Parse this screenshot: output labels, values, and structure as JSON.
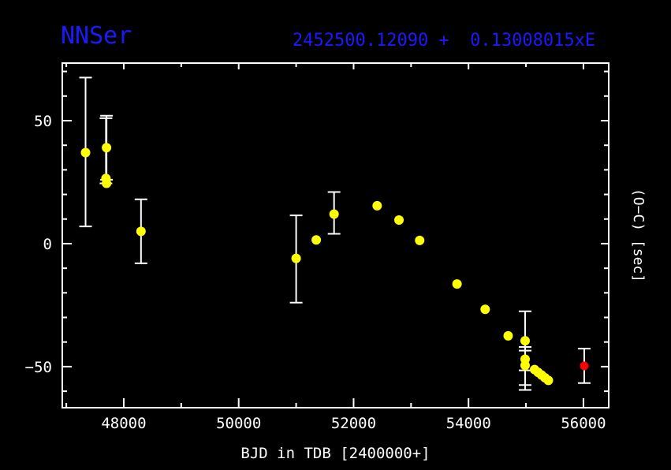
{
  "header": {
    "title": "NNSer",
    "ephemeris": "2452500.12090 +  0.13008015xE"
  },
  "colors": {
    "background": "#000000",
    "accent_blue": "#1a1aff",
    "axis_white": "#ffffff",
    "point_yellow": "#ffff00",
    "point_red": "#ff0000"
  },
  "chart_data": {
    "type": "scatter",
    "title": "NNSer",
    "subtitle_ephemeris": "2452500.12090 +  0.13008015xE",
    "xlabel": "BJD in TDB [2400000+]",
    "ylabel_right": "(O−C) [sec]",
    "xlim": [
      46930,
      56440
    ],
    "ylim": [
      -66.7,
      73.4
    ],
    "grid": false,
    "legend": "none",
    "x_major_ticks": [
      48000,
      50000,
      52000,
      54000,
      56000
    ],
    "x_major_labels": [
      "48000",
      "50000",
      "52000",
      "54000",
      "56000"
    ],
    "x_minor_ticks": [
      47000,
      49000,
      51000,
      53000,
      55000
    ],
    "y_major_ticks": [
      50,
      0,
      -50
    ],
    "y_major_labels": [
      "50",
      "0",
      "−50"
    ],
    "y_minor_ticks": [
      70,
      60,
      40,
      30,
      20,
      10,
      -10,
      -20,
      -30,
      -40,
      -60
    ],
    "errorbar_color": "#ffffff",
    "frame_color": "#ffffff",
    "series": [
      {
        "name": "historical-eclipse-timings",
        "color": "#ffff00",
        "marker_radius": 6,
        "points": [
          {
            "x": 47335,
            "y": 37.0,
            "ep": 30.5,
            "em": 30.0
          },
          {
            "x": 47700,
            "y": 39.0,
            "ep": 13.0,
            "em": 13.0
          },
          {
            "x": 47690,
            "y": 26.5,
            "ep": 24.5,
            "em": 2.0
          },
          {
            "x": 47700,
            "y": 24.5
          },
          {
            "x": 48300,
            "y": 5.0,
            "ep": 13.0,
            "em": 13.0
          },
          {
            "x": 51000,
            "y": -6.0,
            "ep": 17.5,
            "em": 18.0
          },
          {
            "x": 51350,
            "y": 1.5
          },
          {
            "x": 51660,
            "y": 12.0,
            "ep": 9.0,
            "em": 8.0
          },
          {
            "x": 52410,
            "y": 15.4
          },
          {
            "x": 52790,
            "y": 9.6
          },
          {
            "x": 53150,
            "y": 1.3
          },
          {
            "x": 53800,
            "y": -16.4
          },
          {
            "x": 54290,
            "y": -26.7
          },
          {
            "x": 54690,
            "y": -37.5
          },
          {
            "x": 54985,
            "y": -39.5,
            "ep": 12.0,
            "em": 12.0
          },
          {
            "x": 54985,
            "y": -47.0,
            "ep": 5.0,
            "em": 10.5
          },
          {
            "x": 54985,
            "y": -49.5,
            "ep": 6.0,
            "em": 10.0
          },
          {
            "x": 55150,
            "y": -51.2
          },
          {
            "x": 55210,
            "y": -52.3
          },
          {
            "x": 55270,
            "y": -53.4
          },
          {
            "x": 55330,
            "y": -54.5
          },
          {
            "x": 55390,
            "y": -55.6
          }
        ]
      },
      {
        "name": "new-eclipse-timing",
        "color": "#ff0000",
        "marker_radius": 5.5,
        "points": [
          {
            "x": 56014,
            "y": -49.7,
            "ep": 7.0,
            "em": 7.0
          }
        ]
      }
    ]
  }
}
